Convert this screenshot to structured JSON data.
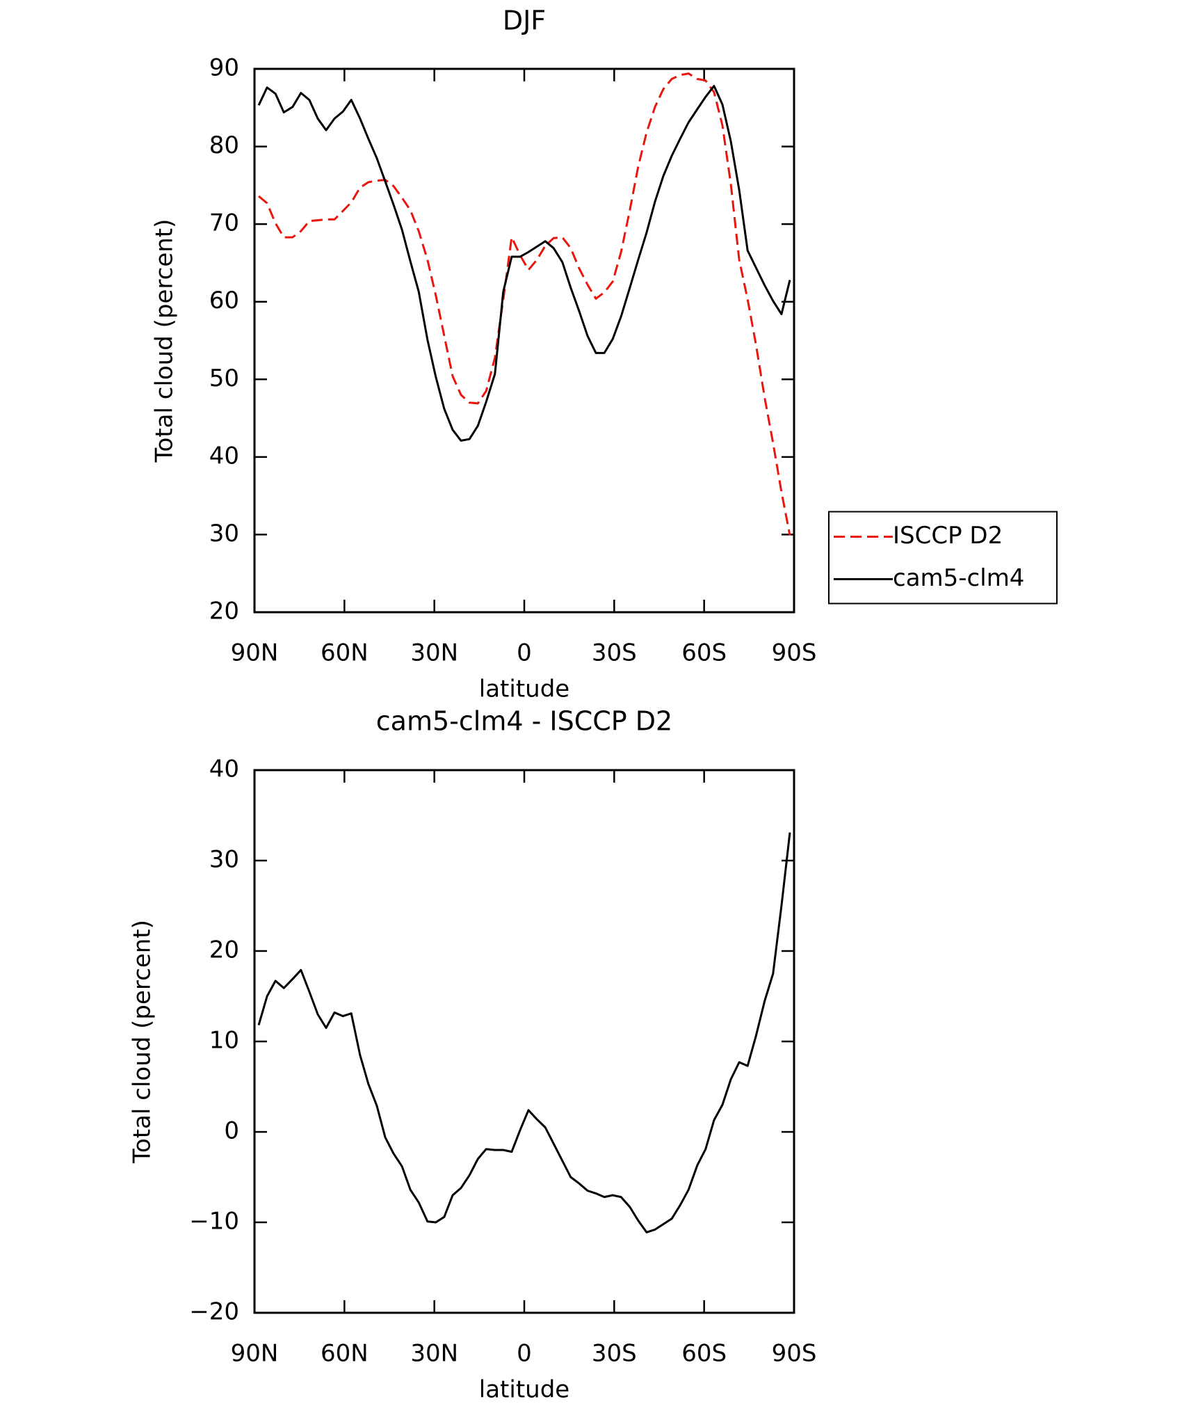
{
  "chart_data": [
    {
      "type": "line",
      "title": "DJF",
      "xlabel": "latitude",
      "ylabel": "Total cloud (percent)",
      "x": [
        88.6,
        85.8,
        83.0,
        80.2,
        77.3,
        74.5,
        71.7,
        68.9,
        66.1,
        63.3,
        60.5,
        57.7,
        54.8,
        52.0,
        49.2,
        46.4,
        43.6,
        40.8,
        38.0,
        35.2,
        32.3,
        29.5,
        26.7,
        23.9,
        21.1,
        18.3,
        15.5,
        12.7,
        9.8,
        7.0,
        4.2,
        1.4,
        -1.4,
        -4.2,
        -7.0,
        -9.8,
        -12.7,
        -15.5,
        -18.3,
        -21.1,
        -23.9,
        -26.7,
        -29.5,
        -32.3,
        -35.2,
        -38.0,
        -40.8,
        -43.6,
        -46.4,
        -49.2,
        -52.0,
        -54.8,
        -57.7,
        -60.5,
        -63.3,
        -66.1,
        -68.9,
        -71.7,
        -74.5,
        -77.3,
        -80.2,
        -83.0,
        -85.8,
        -88.6
      ],
      "series": [
        {
          "name": "ISCCP D2",
          "color": "#e8160c",
          "style": "dashed",
          "values": [
            73.6,
            72.7,
            70.1,
            68.3,
            68.3,
            69.1,
            70.4,
            70.5,
            70.6,
            70.6,
            71.7,
            72.8,
            74.7,
            75.4,
            75.6,
            75.7,
            74.9,
            73.4,
            71.8,
            69.1,
            65.4,
            60.8,
            55.6,
            50.4,
            48.0,
            47.0,
            46.9,
            48.5,
            52.8,
            60.3,
            68.3,
            66.0,
            64.1,
            65.4,
            67.2,
            68.2,
            68.3,
            66.9,
            64.3,
            62.2,
            60.4,
            61.2,
            62.6,
            66.4,
            71.8,
            77.4,
            81.8,
            85.1,
            87.4,
            88.7,
            89.2,
            89.4,
            88.7,
            88.5,
            87.0,
            82.7,
            75.2,
            65.4,
            60.3,
            54.5,
            47.6,
            41.8,
            35.5,
            29.9
          ]
        },
        {
          "name": "cam5-clm4",
          "color": "#000000",
          "style": "solid",
          "values": [
            85.3,
            87.6,
            86.8,
            84.4,
            85.1,
            86.9,
            86.0,
            83.6,
            82.1,
            83.6,
            84.5,
            86.0,
            83.6,
            81.0,
            78.5,
            75.5,
            72.5,
            69.3,
            65.2,
            61.3,
            55.1,
            50.3,
            46.2,
            43.5,
            42.1,
            42.3,
            44.0,
            47.1,
            50.7,
            61.3,
            65.8,
            65.8,
            66.4,
            67.1,
            67.8,
            66.9,
            65.1,
            61.8,
            58.8,
            55.6,
            53.4,
            53.4,
            55.2,
            58.1,
            61.8,
            65.4,
            68.9,
            72.9,
            76.2,
            78.8,
            81.0,
            83.1,
            84.8,
            86.4,
            87.8,
            85.4,
            80.7,
            74.4,
            66.6,
            64.4,
            62.1,
            60.1,
            58.4,
            62.8
          ]
        }
      ],
      "xlim": [
        90,
        -90
      ],
      "xticks": [
        {
          "value": 90,
          "label": "90N"
        },
        {
          "value": 60,
          "label": "60N"
        },
        {
          "value": 30,
          "label": "30N"
        },
        0,
        {
          "value": -30,
          "label": "30S"
        },
        {
          "value": -60,
          "label": "60S"
        },
        {
          "value": -90,
          "label": "90S"
        }
      ],
      "ylim": [
        20,
        90
      ],
      "yticks": [
        20,
        30,
        40,
        50,
        60,
        70,
        80,
        90
      ],
      "legend": "right"
    },
    {
      "type": "line",
      "title": "cam5-clm4 - ISCCP D2",
      "xlabel": "latitude",
      "ylabel": "Total cloud (percent)",
      "x": [
        88.6,
        85.8,
        83.0,
        80.2,
        77.3,
        74.5,
        71.7,
        68.9,
        66.1,
        63.3,
        60.5,
        57.7,
        54.8,
        52.0,
        49.2,
        46.4,
        43.6,
        40.8,
        38.0,
        35.2,
        32.3,
        29.5,
        26.7,
        23.9,
        21.1,
        18.3,
        15.5,
        12.7,
        9.8,
        7.0,
        4.2,
        1.4,
        -1.4,
        -4.2,
        -7.0,
        -9.8,
        -12.7,
        -15.5,
        -18.3,
        -21.1,
        -23.9,
        -26.7,
        -29.5,
        -32.3,
        -35.2,
        -38.0,
        -40.8,
        -43.6,
        -46.4,
        -49.2,
        -52.0,
        -54.8,
        -57.7,
        -60.5,
        -63.3,
        -66.1,
        -68.9,
        -71.7,
        -74.5,
        -77.3,
        -80.2,
        -83.0,
        -85.8,
        -88.6
      ],
      "values": [
        11.8,
        15.0,
        16.7,
        15.9,
        16.9,
        17.9,
        15.5,
        13.0,
        11.5,
        13.2,
        12.8,
        13.1,
        8.5,
        5.3,
        2.9,
        -0.6,
        -2.4,
        -3.8,
        -6.4,
        -7.8,
        -9.9,
        -10.0,
        -9.4,
        -7.0,
        -6.2,
        -4.8,
        -3.0,
        -1.9,
        -2.0,
        -2.0,
        -2.2,
        0.2,
        2.4,
        1.4,
        0.5,
        -1.3,
        -3.2,
        -5.0,
        -5.7,
        -6.5,
        -6.8,
        -7.2,
        -7.0,
        -7.2,
        -8.3,
        -9.8,
        -11.1,
        -10.8,
        -10.2,
        -9.6,
        -8.1,
        -6.4,
        -3.7,
        -1.9,
        1.3,
        3.0,
        5.8,
        7.7,
        7.3,
        10.6,
        14.5,
        17.5,
        25.0,
        33.1
      ],
      "color": "#000000",
      "xlim": [
        90,
        -90
      ],
      "xticks": [
        {
          "value": 90,
          "label": "90N"
        },
        {
          "value": 60,
          "label": "60N"
        },
        {
          "value": 30,
          "label": "30N"
        },
        0,
        {
          "value": -30,
          "label": "30S"
        },
        {
          "value": -60,
          "label": "60S"
        },
        {
          "value": -90,
          "label": "90S"
        }
      ],
      "ylim": [
        -20,
        40
      ],
      "yticks": [
        {
          "value": -20,
          "label": "−20"
        },
        {
          "value": -10,
          "label": "−10"
        },
        0,
        10,
        20,
        30,
        40
      ]
    }
  ]
}
